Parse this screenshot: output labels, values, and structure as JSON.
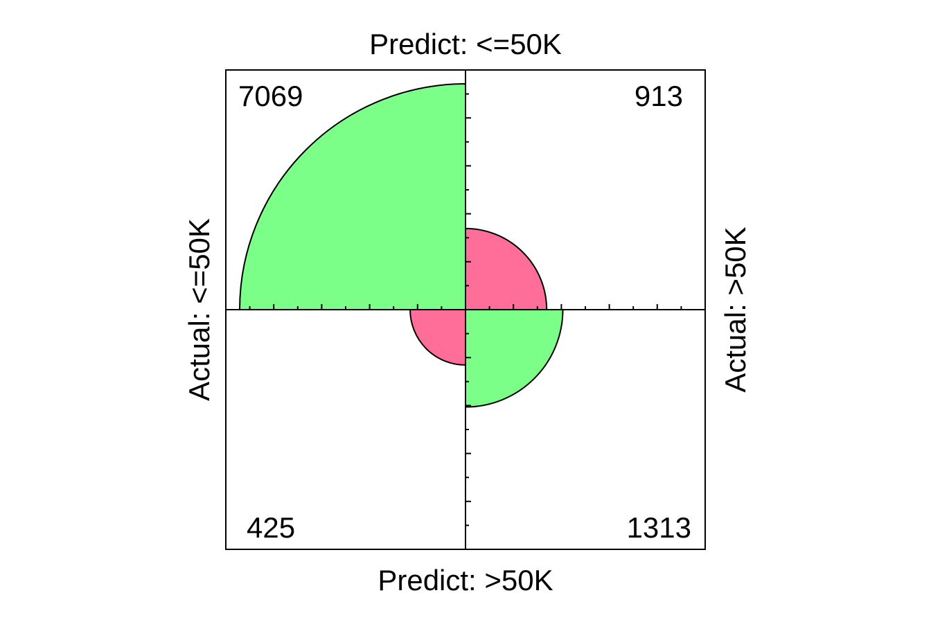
{
  "chart_data": {
    "type": "fourfold",
    "labels": {
      "top": "Predict: <=50K",
      "bottom": "Predict: >50K",
      "left": "Actual: <=50K",
      "right": "Actual: >50K"
    },
    "cells": [
      {
        "quadrant": "top-left",
        "count": "7069",
        "value": 7069,
        "color": "#7BFF88"
      },
      {
        "quadrant": "top-right",
        "count": "913",
        "value": 913,
        "color": "#FF6E98"
      },
      {
        "quadrant": "bottom-left",
        "count": "425",
        "value": 425,
        "color": "#FF6E98"
      },
      {
        "quadrant": "bottom-right",
        "count": "1313",
        "value": 1313,
        "color": "#7BFF88"
      }
    ],
    "grid": false
  }
}
